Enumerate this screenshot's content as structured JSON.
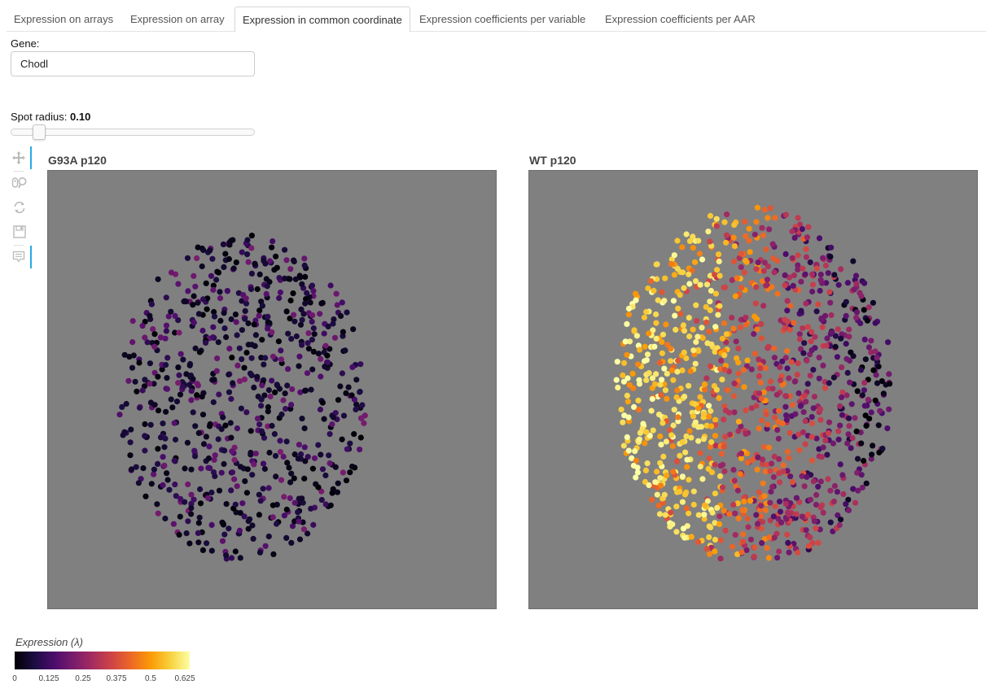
{
  "tabs": [
    {
      "label": "Expression on arrays",
      "active": false
    },
    {
      "label": "Expression on array",
      "active": false
    },
    {
      "label": "Expression in common coordinate",
      "active": true
    },
    {
      "label": "Expression coefficients per variable",
      "active": false
    },
    {
      "label": "Expression coefficients per AAR",
      "active": false
    }
  ],
  "gene": {
    "label": "Gene:",
    "value": "Chodl"
  },
  "spot_radius": {
    "label": "Spot radius:",
    "value": "0.10",
    "slider_fraction": 0.09
  },
  "toolbar": [
    {
      "icon": "pan-icon",
      "active": true
    },
    {
      "icon": "wheel-zoom-icon",
      "active": false
    },
    {
      "icon": "reset-icon",
      "active": false
    },
    {
      "icon": "save-icon",
      "active": false
    },
    {
      "icon": "hover-icon",
      "active": true
    }
  ],
  "plots": [
    {
      "title": "G93A p120"
    },
    {
      "title": "WT p120"
    }
  ],
  "colorbar": {
    "title": "Expression (λ)",
    "ticks": [
      "0",
      "0.125",
      "0.25",
      "0.375",
      "0.5",
      "0.625"
    ],
    "palette": [
      "#000004",
      "#1b0c41",
      "#4a0c6b",
      "#781c6d",
      "#a52c60",
      "#cf4446",
      "#ed6925",
      "#fb9b06",
      "#f7d13d",
      "#fcffa4"
    ]
  },
  "colors": {
    "plot_background": "#808080",
    "accent": "#26aae1"
  }
}
